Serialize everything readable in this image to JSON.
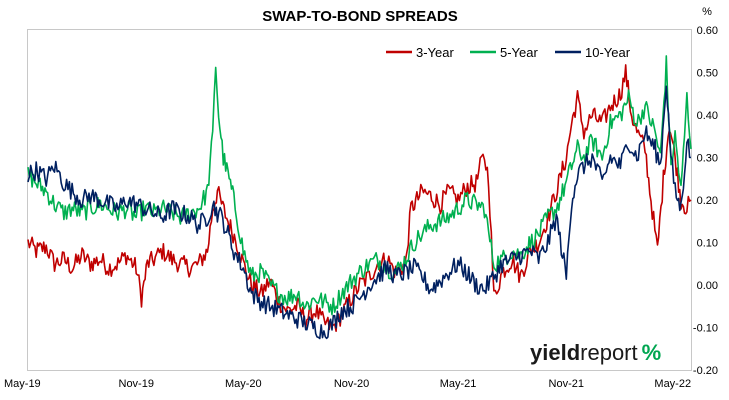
{
  "chart_data": {
    "type": "line",
    "title": "SWAP-TO-BOND SPREADS",
    "y_unit": "%",
    "ylim": [
      -0.2,
      0.6
    ],
    "y_ticks": [
      "0.60",
      "0.50",
      "0.40",
      "0.30",
      "0.20",
      "0.10",
      "0.00",
      "-0.10",
      "-0.20"
    ],
    "y_tick_values": [
      0.6,
      0.5,
      0.4,
      0.3,
      0.2,
      0.1,
      0.0,
      -0.1,
      -0.2
    ],
    "x_ticks": [
      "May-19",
      "Nov-19",
      "May-20",
      "Nov-20",
      "May-21",
      "Nov-21",
      "May-22"
    ],
    "x_tick_values": [
      "2019-05",
      "2019-11",
      "2020-05",
      "2020-11",
      "2021-05",
      "2021-11",
      "2022-05"
    ],
    "grid": false,
    "legend_placement": "top-right",
    "series": [
      {
        "name": "3-Year",
        "color": "#c00000",
        "points": [
          [
            "2019-05-01",
            0.1
          ],
          [
            "2019-05-15",
            0.08
          ],
          [
            "2019-06-01",
            0.09
          ],
          [
            "2019-06-15",
            0.05
          ],
          [
            "2019-07-01",
            0.06
          ],
          [
            "2019-07-15",
            0.04
          ],
          [
            "2019-08-01",
            0.07
          ],
          [
            "2019-08-15",
            0.05
          ],
          [
            "2019-09-01",
            0.06
          ],
          [
            "2019-09-15",
            0.04
          ],
          [
            "2019-10-01",
            0.05
          ],
          [
            "2019-10-15",
            0.07
          ],
          [
            "2019-11-01",
            0.04
          ],
          [
            "2019-11-10",
            -0.03
          ],
          [
            "2019-11-20",
            0.05
          ],
          [
            "2019-12-01",
            0.06
          ],
          [
            "2019-12-15",
            0.08
          ],
          [
            "2020-01-01",
            0.06
          ],
          [
            "2020-01-15",
            0.05
          ],
          [
            "2020-02-01",
            0.04
          ],
          [
            "2020-02-15",
            0.05
          ],
          [
            "2020-03-01",
            0.08
          ],
          [
            "2020-03-10",
            0.18
          ],
          [
            "2020-03-18",
            0.22
          ],
          [
            "2020-03-25",
            0.19
          ],
          [
            "2020-04-05",
            0.15
          ],
          [
            "2020-04-20",
            0.1
          ],
          [
            "2020-05-01",
            0.05
          ],
          [
            "2020-05-15",
            0.0
          ],
          [
            "2020-06-01",
            -0.02
          ],
          [
            "2020-06-15",
            0.01
          ],
          [
            "2020-07-01",
            -0.04
          ],
          [
            "2020-07-15",
            -0.06
          ],
          [
            "2020-08-01",
            -0.05
          ],
          [
            "2020-08-15",
            -0.08
          ],
          [
            "2020-09-01",
            -0.06
          ],
          [
            "2020-09-15",
            -0.09
          ],
          [
            "2020-10-01",
            -0.1
          ],
          [
            "2020-10-15",
            -0.07
          ],
          [
            "2020-11-01",
            -0.03
          ],
          [
            "2020-11-15",
            0.0
          ],
          [
            "2020-12-01",
            0.02
          ],
          [
            "2020-12-15",
            0.05
          ],
          [
            "2021-01-01",
            0.06
          ],
          [
            "2021-01-15",
            0.03
          ],
          [
            "2021-02-01",
            0.05
          ],
          [
            "2021-02-10",
            0.18
          ],
          [
            "2021-02-20",
            0.2
          ],
          [
            "2021-03-01",
            0.22
          ],
          [
            "2021-03-15",
            0.21
          ],
          [
            "2021-04-01",
            0.19
          ],
          [
            "2021-04-15",
            0.22
          ],
          [
            "2021-05-01",
            0.2
          ],
          [
            "2021-05-15",
            0.23
          ],
          [
            "2021-06-01",
            0.24
          ],
          [
            "2021-06-10",
            0.29
          ],
          [
            "2021-06-15",
            0.3
          ],
          [
            "2021-06-22",
            0.25
          ],
          [
            "2021-07-01",
            -0.03
          ],
          [
            "2021-07-15",
            0.03
          ],
          [
            "2021-08-01",
            0.06
          ],
          [
            "2021-08-15",
            0.02
          ],
          [
            "2021-09-01",
            0.08
          ],
          [
            "2021-09-15",
            0.1
          ],
          [
            "2021-10-01",
            0.16
          ],
          [
            "2021-10-15",
            0.22
          ],
          [
            "2021-11-01",
            0.3
          ],
          [
            "2021-11-10",
            0.38
          ],
          [
            "2021-11-20",
            0.44
          ],
          [
            "2021-12-01",
            0.36
          ],
          [
            "2021-12-15",
            0.4
          ],
          [
            "2022-01-01",
            0.38
          ],
          [
            "2022-01-15",
            0.42
          ],
          [
            "2022-02-01",
            0.45
          ],
          [
            "2022-02-10",
            0.5
          ],
          [
            "2022-02-20",
            0.4
          ],
          [
            "2022-03-01",
            0.36
          ],
          [
            "2022-03-15",
            0.32
          ],
          [
            "2022-03-25",
            0.2
          ],
          [
            "2022-04-05",
            0.08
          ],
          [
            "2022-04-15",
            0.25
          ],
          [
            "2022-04-25",
            0.38
          ],
          [
            "2022-05-05",
            0.3
          ],
          [
            "2022-05-15",
            0.2
          ],
          [
            "2022-05-25",
            0.18
          ],
          [
            "2022-06-01",
            0.2
          ]
        ]
      },
      {
        "name": "5-Year",
        "color": "#00b050",
        "points": [
          [
            "2019-05-01",
            0.26
          ],
          [
            "2019-05-15",
            0.24
          ],
          [
            "2019-06-01",
            0.22
          ],
          [
            "2019-06-15",
            0.19
          ],
          [
            "2019-07-01",
            0.17
          ],
          [
            "2019-07-15",
            0.18
          ],
          [
            "2019-08-01",
            0.17
          ],
          [
            "2019-08-15",
            0.18
          ],
          [
            "2019-09-01",
            0.19
          ],
          [
            "2019-09-15",
            0.18
          ],
          [
            "2019-10-01",
            0.17
          ],
          [
            "2019-10-15",
            0.18
          ],
          [
            "2019-11-01",
            0.16
          ],
          [
            "2019-11-15",
            0.18
          ],
          [
            "2019-12-01",
            0.17
          ],
          [
            "2019-12-15",
            0.18
          ],
          [
            "2020-01-01",
            0.17
          ],
          [
            "2020-01-15",
            0.16
          ],
          [
            "2020-02-01",
            0.17
          ],
          [
            "2020-02-15",
            0.18
          ],
          [
            "2020-03-01",
            0.22
          ],
          [
            "2020-03-10",
            0.35
          ],
          [
            "2020-03-15",
            0.52
          ],
          [
            "2020-03-20",
            0.4
          ],
          [
            "2020-03-28",
            0.3
          ],
          [
            "2020-04-05",
            0.26
          ],
          [
            "2020-04-15",
            0.2
          ],
          [
            "2020-05-01",
            0.08
          ],
          [
            "2020-05-15",
            0.02
          ],
          [
            "2020-06-01",
            0.03
          ],
          [
            "2020-06-15",
            0.0
          ],
          [
            "2020-07-01",
            -0.02
          ],
          [
            "2020-07-15",
            -0.03
          ],
          [
            "2020-08-01",
            -0.02
          ],
          [
            "2020-08-15",
            -0.05
          ],
          [
            "2020-09-01",
            -0.03
          ],
          [
            "2020-09-15",
            -0.04
          ],
          [
            "2020-10-01",
            -0.05
          ],
          [
            "2020-10-15",
            -0.02
          ],
          [
            "2020-11-01",
            0.01
          ],
          [
            "2020-11-15",
            0.03
          ],
          [
            "2020-12-01",
            0.05
          ],
          [
            "2020-12-15",
            0.06
          ],
          [
            "2021-01-01",
            0.04
          ],
          [
            "2021-01-15",
            0.03
          ],
          [
            "2021-02-01",
            0.06
          ],
          [
            "2021-02-15",
            0.1
          ],
          [
            "2021-03-01",
            0.12
          ],
          [
            "2021-03-15",
            0.14
          ],
          [
            "2021-04-01",
            0.15
          ],
          [
            "2021-04-15",
            0.16
          ],
          [
            "2021-05-01",
            0.18
          ],
          [
            "2021-05-15",
            0.2
          ],
          [
            "2021-06-01",
            0.19
          ],
          [
            "2021-06-15",
            0.18
          ],
          [
            "2021-07-01",
            0.05
          ],
          [
            "2021-07-15",
            0.06
          ],
          [
            "2021-08-01",
            0.08
          ],
          [
            "2021-08-15",
            0.07
          ],
          [
            "2021-09-01",
            0.1
          ],
          [
            "2021-09-15",
            0.12
          ],
          [
            "2021-10-01",
            0.16
          ],
          [
            "2021-10-15",
            0.18
          ],
          [
            "2021-11-01",
            0.24
          ],
          [
            "2021-11-10",
            0.28
          ],
          [
            "2021-11-20",
            0.32
          ],
          [
            "2021-12-01",
            0.3
          ],
          [
            "2021-12-15",
            0.34
          ],
          [
            "2022-01-01",
            0.3
          ],
          [
            "2022-01-15",
            0.38
          ],
          [
            "2022-02-01",
            0.4
          ],
          [
            "2022-02-15",
            0.44
          ],
          [
            "2022-03-01",
            0.38
          ],
          [
            "2022-03-15",
            0.42
          ],
          [
            "2022-04-01",
            0.36
          ],
          [
            "2022-04-10",
            0.3
          ],
          [
            "2022-04-20",
            0.52
          ],
          [
            "2022-04-28",
            0.28
          ],
          [
            "2022-05-05",
            0.35
          ],
          [
            "2022-05-15",
            0.22
          ],
          [
            "2022-05-25",
            0.44
          ],
          [
            "2022-06-01",
            0.32
          ]
        ]
      },
      {
        "name": "10-Year",
        "color": "#002060",
        "points": [
          [
            "2019-05-01",
            0.26
          ],
          [
            "2019-05-15",
            0.27
          ],
          [
            "2019-06-01",
            0.25
          ],
          [
            "2019-06-15",
            0.28
          ],
          [
            "2019-07-01",
            0.24
          ],
          [
            "2019-07-15",
            0.22
          ],
          [
            "2019-08-01",
            0.2
          ],
          [
            "2019-08-15",
            0.21
          ],
          [
            "2019-09-01",
            0.2
          ],
          [
            "2019-09-15",
            0.19
          ],
          [
            "2019-10-01",
            0.18
          ],
          [
            "2019-10-15",
            0.2
          ],
          [
            "2019-11-01",
            0.19
          ],
          [
            "2019-11-15",
            0.18
          ],
          [
            "2019-12-01",
            0.17
          ],
          [
            "2019-12-15",
            0.16
          ],
          [
            "2020-01-01",
            0.18
          ],
          [
            "2020-01-15",
            0.17
          ],
          [
            "2020-02-01",
            0.16
          ],
          [
            "2020-02-15",
            0.14
          ],
          [
            "2020-03-01",
            0.16
          ],
          [
            "2020-03-10",
            0.19
          ],
          [
            "2020-03-18",
            0.17
          ],
          [
            "2020-03-25",
            0.16
          ],
          [
            "2020-04-05",
            0.12
          ],
          [
            "2020-04-15",
            0.08
          ],
          [
            "2020-05-01",
            0.04
          ],
          [
            "2020-05-15",
            -0.02
          ],
          [
            "2020-06-01",
            -0.04
          ],
          [
            "2020-06-15",
            -0.05
          ],
          [
            "2020-07-01",
            -0.06
          ],
          [
            "2020-07-15",
            -0.07
          ],
          [
            "2020-08-01",
            -0.08
          ],
          [
            "2020-08-15",
            -0.09
          ],
          [
            "2020-09-01",
            -0.1
          ],
          [
            "2020-09-15",
            -0.11
          ],
          [
            "2020-10-01",
            -0.09
          ],
          [
            "2020-10-15",
            -0.06
          ],
          [
            "2020-11-01",
            -0.05
          ],
          [
            "2020-11-15",
            -0.03
          ],
          [
            "2020-12-01",
            0.0
          ],
          [
            "2020-12-15",
            0.02
          ],
          [
            "2021-01-01",
            0.04
          ],
          [
            "2021-01-15",
            0.02
          ],
          [
            "2021-02-01",
            0.03
          ],
          [
            "2021-02-15",
            0.04
          ],
          [
            "2021-03-01",
            0.02
          ],
          [
            "2021-03-15",
            -0.01
          ],
          [
            "2021-04-01",
            0.01
          ],
          [
            "2021-04-15",
            0.03
          ],
          [
            "2021-05-01",
            0.05
          ],
          [
            "2021-05-15",
            0.03
          ],
          [
            "2021-06-01",
            0.0
          ],
          [
            "2021-06-15",
            -0.01
          ],
          [
            "2021-07-01",
            0.02
          ],
          [
            "2021-07-15",
            0.05
          ],
          [
            "2021-08-01",
            0.06
          ],
          [
            "2021-08-15",
            0.07
          ],
          [
            "2021-09-01",
            0.08
          ],
          [
            "2021-09-15",
            0.06
          ],
          [
            "2021-10-01",
            0.1
          ],
          [
            "2021-10-15",
            0.16
          ],
          [
            "2021-11-01",
            0.02
          ],
          [
            "2021-11-10",
            0.2
          ],
          [
            "2021-11-20",
            0.26
          ],
          [
            "2021-12-01",
            0.28
          ],
          [
            "2021-12-15",
            0.3
          ],
          [
            "2022-01-01",
            0.24
          ],
          [
            "2022-01-15",
            0.3
          ],
          [
            "2022-02-01",
            0.28
          ],
          [
            "2022-02-15",
            0.34
          ],
          [
            "2022-03-01",
            0.3
          ],
          [
            "2022-03-15",
            0.36
          ],
          [
            "2022-04-01",
            0.32
          ],
          [
            "2022-04-10",
            0.28
          ],
          [
            "2022-04-20",
            0.48
          ],
          [
            "2022-04-28",
            0.3
          ],
          [
            "2022-05-05",
            0.22
          ],
          [
            "2022-05-15",
            0.18
          ],
          [
            "2022-05-25",
            0.34
          ],
          [
            "2022-06-01",
            0.3
          ]
        ]
      }
    ]
  },
  "branding": {
    "part1": "yield",
    "part2": "report",
    "symbol": "%",
    "symbol_color_top": "#00a651",
    "symbol_color_bottom": "#c00000"
  }
}
